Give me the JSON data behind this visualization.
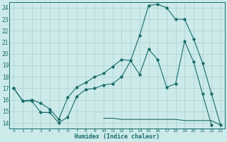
{
  "xlabel": "Humidex (Indice chaleur)",
  "bg_color": "#cceaea",
  "line_color": "#1a6b6b",
  "grid_color": "#aacfcf",
  "xlim": [
    -0.5,
    23.5
  ],
  "ylim": [
    13.5,
    24.5
  ],
  "xticks": [
    0,
    1,
    2,
    3,
    4,
    5,
    6,
    7,
    8,
    9,
    10,
    11,
    12,
    13,
    14,
    15,
    16,
    17,
    18,
    19,
    20,
    21,
    22,
    23
  ],
  "yticks": [
    14,
    15,
    16,
    17,
    18,
    19,
    20,
    21,
    22,
    23,
    24
  ],
  "line1_x": [
    0,
    1,
    2,
    3,
    4,
    5,
    6,
    7,
    8,
    9,
    10,
    11,
    12,
    13,
    14,
    15,
    16,
    17,
    18,
    19,
    20,
    21,
    22
  ],
  "line1_y": [
    17.0,
    15.9,
    15.9,
    14.9,
    14.9,
    14.0,
    14.5,
    16.3,
    16.9,
    17.0,
    17.3,
    17.4,
    18.0,
    19.4,
    18.2,
    20.4,
    19.5,
    17.1,
    17.4,
    21.1,
    19.3,
    16.5,
    13.8
  ],
  "line2_x": [
    0,
    1,
    2,
    3,
    4,
    5,
    6,
    7,
    8,
    9,
    10,
    11,
    12,
    13,
    14,
    15,
    16,
    17,
    18,
    19,
    20,
    21,
    22,
    23
  ],
  "line2_y": [
    17.0,
    15.9,
    16.0,
    15.7,
    15.2,
    14.3,
    16.2,
    17.1,
    17.5,
    18.0,
    18.3,
    18.9,
    19.5,
    19.4,
    21.6,
    24.2,
    24.3,
    24.0,
    23.0,
    23.0,
    21.3,
    19.2,
    16.5,
    13.8
  ],
  "line3_x": [
    10,
    11,
    12,
    13,
    14,
    15,
    16,
    17,
    18,
    19,
    20,
    21,
    22,
    23
  ],
  "line3_y": [
    14.4,
    14.4,
    14.3,
    14.3,
    14.3,
    14.3,
    14.3,
    14.3,
    14.3,
    14.2,
    14.2,
    14.2,
    14.2,
    13.8
  ]
}
